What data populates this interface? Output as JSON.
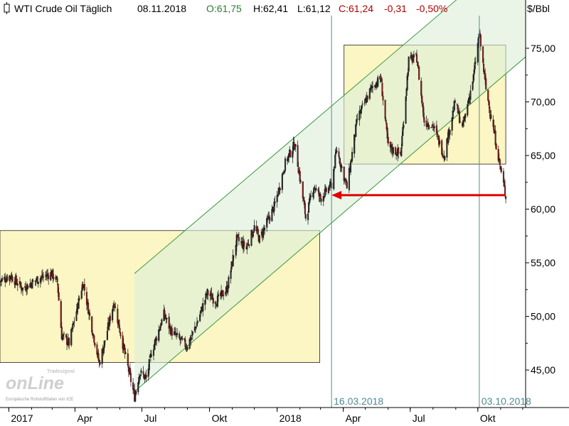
{
  "header": {
    "instrument": "WTI Crude Oil Täglich",
    "date": "08.11.2018",
    "open": "O:61,75",
    "high": "H:62,41",
    "low": "L:61,12",
    "close": "C:61,24",
    "change": "-0,31",
    "change_pct": "-0,50%"
  },
  "watermark": {
    "brand": "Tradesignal",
    "logo": "onLine",
    "source_note": "Europäische Rohstoffdaten von ICE"
  },
  "colors": {
    "up": "#2e7d32",
    "down": "#b00000",
    "candle_up": "#2a2a2a",
    "candle_down": "#8b1a1a",
    "zone_fill": "#fbf6c4",
    "channel_fill": "#dcefd8",
    "channel_line": "#3c9a3c",
    "marker_line": "#5a8c8c",
    "arrow": "#e00000"
  },
  "chart_data": {
    "type": "candlestick",
    "title": "WTI Crude Oil Täglich",
    "ylabel": "$/Bbl",
    "ylim": [
      41.5,
      79.5
    ],
    "xlim": [
      "2016-12-20",
      "2018-12-05"
    ],
    "y_ticks": [
      "45,00",
      "50,00",
      "55,00",
      "60,00",
      "65,00",
      "70,00",
      "75,00"
    ],
    "y_tick_values": [
      45,
      50,
      55,
      60,
      65,
      70,
      75
    ],
    "x_ticks": [
      {
        "label": "2017",
        "date": "2017-01-01"
      },
      {
        "label": "Apr",
        "date": "2017-04-01"
      },
      {
        "label": "Jul",
        "date": "2017-07-01"
      },
      {
        "label": "Okt",
        "date": "2017-10-01"
      },
      {
        "label": "2018",
        "date": "2018-01-01"
      },
      {
        "label": "Apr",
        "date": "2018-04-01"
      },
      {
        "label": "Jul",
        "date": "2018-07-01"
      },
      {
        "label": "Okt",
        "date": "2018-10-01"
      }
    ],
    "price_path": [
      [
        "2016-12-20",
        53.3
      ],
      [
        "2017-01-03",
        53.8
      ],
      [
        "2017-01-20",
        52.6
      ],
      [
        "2017-02-10",
        53.5
      ],
      [
        "2017-02-28",
        54.0
      ],
      [
        "2017-03-08",
        53.2
      ],
      [
        "2017-03-14",
        48.2
      ],
      [
        "2017-03-24",
        47.5
      ],
      [
        "2017-04-03",
        50.5
      ],
      [
        "2017-04-12",
        53.2
      ],
      [
        "2017-04-20",
        50.3
      ],
      [
        "2017-05-04",
        45.6
      ],
      [
        "2017-05-12",
        47.8
      ],
      [
        "2017-05-24",
        51.4
      ],
      [
        "2017-06-05",
        47.4
      ],
      [
        "2017-06-21",
        42.5
      ],
      [
        "2017-06-28",
        44.8
      ],
      [
        "2017-07-07",
        44.2
      ],
      [
        "2017-07-14",
        46.6
      ],
      [
        "2017-07-31",
        50.2
      ],
      [
        "2017-08-10",
        48.6
      ],
      [
        "2017-08-31",
        47.2
      ],
      [
        "2017-09-12",
        49.0
      ],
      [
        "2017-09-28",
        52.2
      ],
      [
        "2017-10-10",
        51.4
      ],
      [
        "2017-10-25",
        52.6
      ],
      [
        "2017-11-07",
        57.2
      ],
      [
        "2017-11-20",
        56.4
      ],
      [
        "2017-12-01",
        58.3
      ],
      [
        "2017-12-08",
        57.2
      ],
      [
        "2017-12-29",
        60.4
      ],
      [
        "2018-01-12",
        64.3
      ],
      [
        "2018-01-25",
        66.1
      ],
      [
        "2018-02-09",
        59.2
      ],
      [
        "2018-02-20",
        62.2
      ],
      [
        "2018-03-01",
        61.0
      ],
      [
        "2018-03-16",
        62.3
      ],
      [
        "2018-03-23",
        65.6
      ],
      [
        "2018-04-06",
        62.0
      ],
      [
        "2018-04-20",
        68.4
      ],
      [
        "2018-05-10",
        71.4
      ],
      [
        "2018-05-22",
        72.2
      ],
      [
        "2018-06-01",
        65.8
      ],
      [
        "2018-06-18",
        65.1
      ],
      [
        "2018-06-29",
        73.9
      ],
      [
        "2018-07-10",
        74.1
      ],
      [
        "2018-07-20",
        68.2
      ],
      [
        "2018-08-01",
        67.8
      ],
      [
        "2018-08-16",
        65.0
      ],
      [
        "2018-08-31",
        70.0
      ],
      [
        "2018-09-10",
        67.5
      ],
      [
        "2018-09-25",
        72.3
      ],
      [
        "2018-10-03",
        76.4
      ],
      [
        "2018-10-12",
        71.2
      ],
      [
        "2018-10-24",
        66.8
      ],
      [
        "2018-11-01",
        63.7
      ],
      [
        "2018-11-08",
        61.24
      ]
    ],
    "annotations": {
      "zones": [
        {
          "x0": "2016-12-20",
          "x1": "2018-02-28",
          "y0": 45.7,
          "y1": 58.0
        },
        {
          "x0": "2018-04-02",
          "x1": "2018-11-08",
          "y0": 64.2,
          "y1": 75.3
        }
      ],
      "channel": {
        "lower": [
          [
            "2017-06-21",
            43.0
          ],
          [
            "2018-12-05",
            74.2
          ]
        ],
        "upper": [
          [
            "2017-06-21",
            54.0
          ],
          [
            "2018-12-05",
            85.0
          ]
        ]
      },
      "vertical_markers": [
        {
          "date": "2018-03-16",
          "label": "16.03.2018"
        },
        {
          "date": "2018-10-03",
          "label": "03.10.2018"
        }
      ],
      "arrow": {
        "from": [
          "2018-11-08",
          61.3
        ],
        "to": [
          "2018-03-16",
          61.3
        ]
      }
    }
  }
}
